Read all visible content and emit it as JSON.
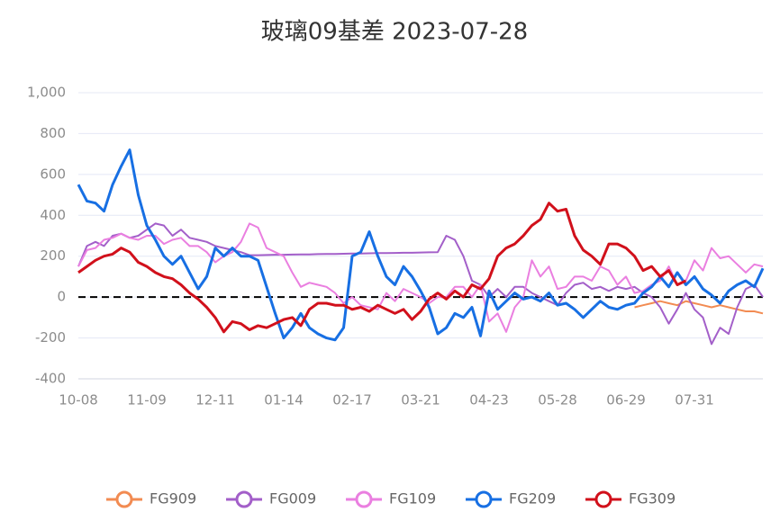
{
  "chart_data": {
    "type": "line",
    "title": "玻璃09基差 2023-07-28",
    "categories": [
      "10-08",
      null,
      null,
      null,
      null,
      null,
      null,
      null,
      "11-09",
      null,
      null,
      null,
      null,
      null,
      null,
      null,
      "12-11",
      null,
      null,
      null,
      null,
      null,
      null,
      null,
      "01-14",
      null,
      null,
      null,
      null,
      null,
      null,
      null,
      "02-17",
      null,
      null,
      null,
      null,
      null,
      null,
      null,
      "03-21",
      null,
      null,
      null,
      null,
      null,
      null,
      null,
      "04-23",
      null,
      null,
      null,
      null,
      null,
      null,
      null,
      "05-28",
      null,
      null,
      null,
      null,
      null,
      null,
      null,
      "06-29",
      null,
      null,
      null,
      null,
      null,
      null,
      null,
      "07-31",
      null,
      null,
      null,
      null,
      null,
      null,
      null,
      null
    ],
    "ylim": [
      -400,
      1000
    ],
    "yticks": [
      -400,
      -200,
      0,
      200,
      400,
      600,
      800,
      {
        "value": 1000,
        "label": "1,000"
      }
    ],
    "grid": true,
    "legend": "bottom",
    "series": [
      {
        "name": "FG909",
        "color": "#f28b52",
        "values": [
          null,
          null,
          null,
          null,
          null,
          null,
          null,
          null,
          null,
          null,
          null,
          null,
          null,
          null,
          null,
          null,
          null,
          null,
          null,
          null,
          null,
          null,
          null,
          null,
          null,
          null,
          null,
          null,
          null,
          null,
          null,
          null,
          null,
          null,
          null,
          null,
          null,
          null,
          null,
          null,
          null,
          null,
          null,
          null,
          null,
          null,
          null,
          null,
          null,
          null,
          null,
          null,
          null,
          null,
          null,
          null,
          null,
          null,
          null,
          null,
          null,
          null,
          null,
          null,
          null,
          -50,
          -40,
          -30,
          -20,
          -30,
          -40,
          -20,
          -30,
          -40,
          -50,
          -40,
          -50,
          -60,
          -70,
          -70,
          -80
        ]
      },
      {
        "name": "FG009",
        "color": "#a35fc9",
        "values": [
          150,
          250,
          270,
          250,
          300,
          310,
          290,
          300,
          330,
          360,
          350,
          300,
          330,
          290,
          280,
          270,
          250,
          240,
          230,
          220,
          205,
          205,
          206,
          207,
          207,
          208,
          209,
          209,
          210,
          211,
          211,
          212,
          213,
          213,
          214,
          215,
          215,
          216,
          217,
          217,
          218,
          219,
          220,
          300,
          280,
          200,
          80,
          60,
          0,
          40,
          0,
          50,
          50,
          20,
          0,
          -20,
          -40,
          20,
          60,
          70,
          40,
          50,
          30,
          50,
          40,
          50,
          20,
          0,
          -50,
          -130,
          -60,
          20,
          -60,
          -100,
          -230,
          -150,
          -180,
          -50,
          40,
          60,
          0
        ]
      },
      {
        "name": "FG109",
        "color": "#ea7fe0",
        "values": [
          150,
          230,
          240,
          280,
          290,
          310,
          290,
          280,
          300,
          300,
          260,
          280,
          290,
          250,
          250,
          220,
          170,
          200,
          220,
          270,
          360,
          340,
          240,
          220,
          200,
          120,
          50,
          70,
          60,
          50,
          20,
          -30,
          0,
          -40,
          -50,
          -60,
          20,
          -20,
          40,
          20,
          0,
          -30,
          0,
          0,
          50,
          50,
          0,
          60,
          -120,
          -80,
          -170,
          -50,
          0,
          180,
          100,
          150,
          40,
          50,
          100,
          100,
          80,
          150,
          130,
          60,
          100,
          20,
          30,
          60,
          80,
          150,
          60,
          80,
          180,
          130,
          240,
          190,
          200,
          160,
          120,
          160,
          150
        ]
      },
      {
        "name": "FG209",
        "color": "#176fe3",
        "values": [
          550,
          470,
          460,
          420,
          550,
          640,
          720,
          500,
          350,
          280,
          200,
          160,
          200,
          120,
          40,
          100,
          240,
          200,
          240,
          200,
          200,
          180,
          50,
          -80,
          -200,
          -150,
          -80,
          -150,
          -180,
          -200,
          -210,
          -150,
          200,
          220,
          320,
          200,
          100,
          60,
          150,
          100,
          30,
          -50,
          -180,
          -150,
          -80,
          -100,
          -50,
          -190,
          30,
          -60,
          -20,
          20,
          -10,
          0,
          -20,
          20,
          -40,
          -30,
          -60,
          -100,
          -60,
          -20,
          -50,
          -60,
          -40,
          -30,
          20,
          50,
          100,
          50,
          120,
          60,
          100,
          40,
          10,
          -30,
          30,
          60,
          80,
          50,
          140
        ]
      },
      {
        "name": "FG309",
        "color": "#d1101b",
        "values": [
          120,
          150,
          180,
          200,
          210,
          240,
          220,
          170,
          150,
          120,
          100,
          90,
          60,
          20,
          -10,
          -50,
          -100,
          -170,
          -120,
          -130,
          -160,
          -140,
          -150,
          -130,
          -110,
          -100,
          -140,
          -60,
          -30,
          -30,
          -40,
          -40,
          -60,
          -50,
          -70,
          -40,
          -60,
          -80,
          -60,
          -110,
          -70,
          -10,
          20,
          -10,
          30,
          0,
          60,
          40,
          90,
          200,
          240,
          260,
          300,
          350,
          380,
          460,
          420,
          430,
          300,
          230,
          200,
          160,
          260,
          260,
          240,
          200,
          130,
          150,
          100,
          130,
          60,
          80,
          null,
          null,
          null,
          null,
          null,
          null,
          null,
          null,
          null
        ]
      }
    ]
  }
}
